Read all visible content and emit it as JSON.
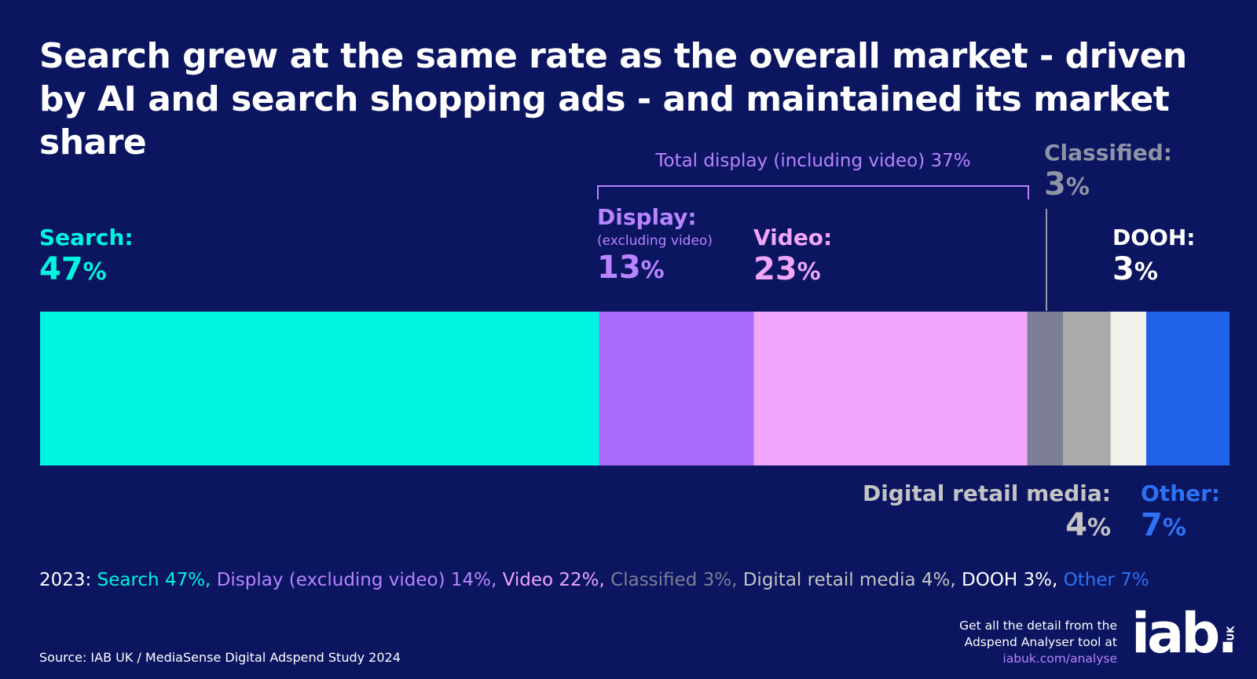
{
  "title": "Search grew at the same rate as the overall market - driven by AI and search shopping ads - and maintained its market share",
  "colors": {
    "background": "#0b1560",
    "search": "#00f5e0",
    "display": "#a86bfa",
    "video": "#efa6fb",
    "classified": "#7d8095",
    "digital_retail_media": "#aaaaaa",
    "dooh": "#f2f0ea",
    "other": "#1f63e8",
    "total_display": "#b884ff"
  },
  "chart_data": {
    "type": "bar",
    "orientation": "horizontal-stacked",
    "unit": "%",
    "title": "Search grew at the same rate as the overall market - driven by AI and search shopping ads - and maintained its market share",
    "series": [
      {
        "name": "Search",
        "value": 47
      },
      {
        "name": "Display (excluding video)",
        "value": 13
      },
      {
        "name": "Video",
        "value": 23
      },
      {
        "name": "Classified",
        "value": 3
      },
      {
        "name": "Digital retail media",
        "value": 4
      },
      {
        "name": "DOOH",
        "value": 3
      },
      {
        "name": "Other",
        "value": 7
      }
    ],
    "annotation": "Total display (including video) 37%"
  },
  "labels": {
    "search": {
      "label": "Search:",
      "value": "47",
      "pct": "%"
    },
    "display": {
      "label": "Display:",
      "sub": "(excluding video)",
      "value": "13",
      "pct": "%"
    },
    "video": {
      "label": "Video:",
      "value": "23",
      "pct": "%"
    },
    "classified": {
      "label": "Classified:",
      "value": "3",
      "pct": "%"
    },
    "dooh": {
      "label": "DOOH:",
      "value": "3",
      "pct": "%"
    },
    "digital_retail_media": {
      "label": "Digital retail media:",
      "value": "4",
      "pct": "%"
    },
    "other": {
      "label": "Other:",
      "value": "7",
      "pct": "%"
    }
  },
  "total_display_label": "Total display (including video) 37%",
  "note_2023": {
    "prefix": "2023:",
    "search": "Search 47%,",
    "display": "Display (excluding video) 14%,",
    "video": "Video 22%,",
    "classified": "Classified 3%,",
    "retail": "Digital retail media 4%,",
    "dooh": "DOOH 3%,",
    "other": "Other 7%"
  },
  "source": "Source: IAB UK / MediaSense Digital Adspend Study 2024",
  "cta": {
    "line1": "Get all the detail from the",
    "line2": "Adspend Analyser tool at",
    "link": "iabuk.com/analyse"
  },
  "logo": {
    "text": "iab.",
    "suffix": "UK"
  }
}
